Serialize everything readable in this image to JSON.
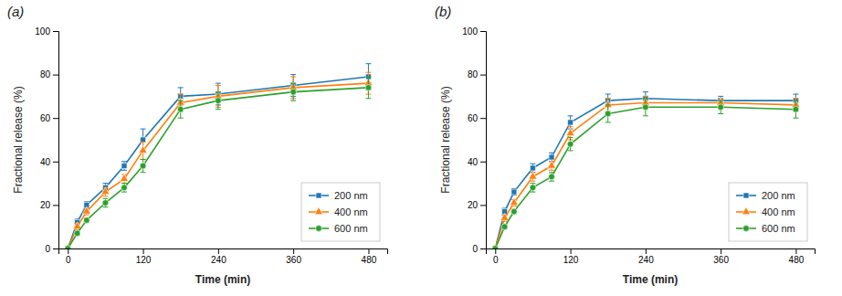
{
  "chart_data": [
    {
      "type": "line",
      "title": "(a)",
      "xlabel": "Time (min)",
      "ylabel": "Fractional release (%)",
      "x": [
        0,
        15,
        30,
        60,
        90,
        120,
        180,
        240,
        360,
        480
      ],
      "series": [
        {
          "name": "200 nm",
          "marker": "square",
          "values": [
            0,
            12,
            20,
            28,
            38,
            50,
            70,
            71,
            75,
            79
          ],
          "errors": [
            0,
            1.5,
            1.5,
            2,
            2,
            5,
            4,
            5,
            5,
            6
          ]
        },
        {
          "name": "400 nm",
          "marker": "triangle",
          "values": [
            0,
            10,
            17,
            26,
            32,
            45,
            67,
            70,
            74,
            76
          ],
          "errors": [
            0,
            1.5,
            1.5,
            2,
            2,
            4,
            4,
            5,
            5,
            5
          ]
        },
        {
          "name": "600 nm",
          "marker": "circle",
          "values": [
            0,
            7,
            13,
            21,
            28,
            38,
            64,
            68,
            72,
            74
          ],
          "errors": [
            0,
            1,
            1,
            2,
            2,
            3,
            4,
            4,
            4,
            5
          ]
        }
      ],
      "xlim": [
        -15,
        510
      ],
      "xticks": [
        0,
        120,
        240,
        360,
        480
      ],
      "ylim": [
        0,
        100
      ],
      "yticks": [
        0,
        20,
        40,
        60,
        80,
        100
      ],
      "grid": false,
      "legend": "lower right"
    },
    {
      "type": "line",
      "title": "(b)",
      "xlabel": "Time (min)",
      "ylabel": "Fractional release (%)",
      "x": [
        0,
        15,
        30,
        60,
        90,
        120,
        180,
        240,
        360,
        480
      ],
      "series": [
        {
          "name": "200 nm",
          "marker": "square",
          "values": [
            0,
            17,
            26,
            37,
            42,
            58,
            68,
            69,
            68,
            68
          ],
          "errors": [
            0,
            1.5,
            1.5,
            2,
            2,
            3,
            3,
            3,
            2,
            3
          ]
        },
        {
          "name": "400 nm",
          "marker": "triangle",
          "values": [
            0,
            14,
            21,
            33,
            38,
            53,
            66,
            67,
            67,
            66
          ],
          "errors": [
            0,
            1.5,
            1.5,
            2,
            2,
            3,
            3,
            3,
            2,
            3
          ]
        },
        {
          "name": "600 nm",
          "marker": "circle",
          "values": [
            0,
            10,
            17,
            28,
            33,
            48,
            62,
            65,
            65,
            64
          ],
          "errors": [
            0,
            1,
            1,
            2,
            2,
            3,
            4,
            4,
            3,
            4
          ]
        }
      ],
      "xlim": [
        -15,
        510
      ],
      "xticks": [
        0,
        120,
        240,
        360,
        480
      ],
      "ylim": [
        0,
        100
      ],
      "yticks": [
        0,
        20,
        40,
        60,
        80,
        100
      ],
      "grid": false,
      "legend": "lower right"
    }
  ]
}
